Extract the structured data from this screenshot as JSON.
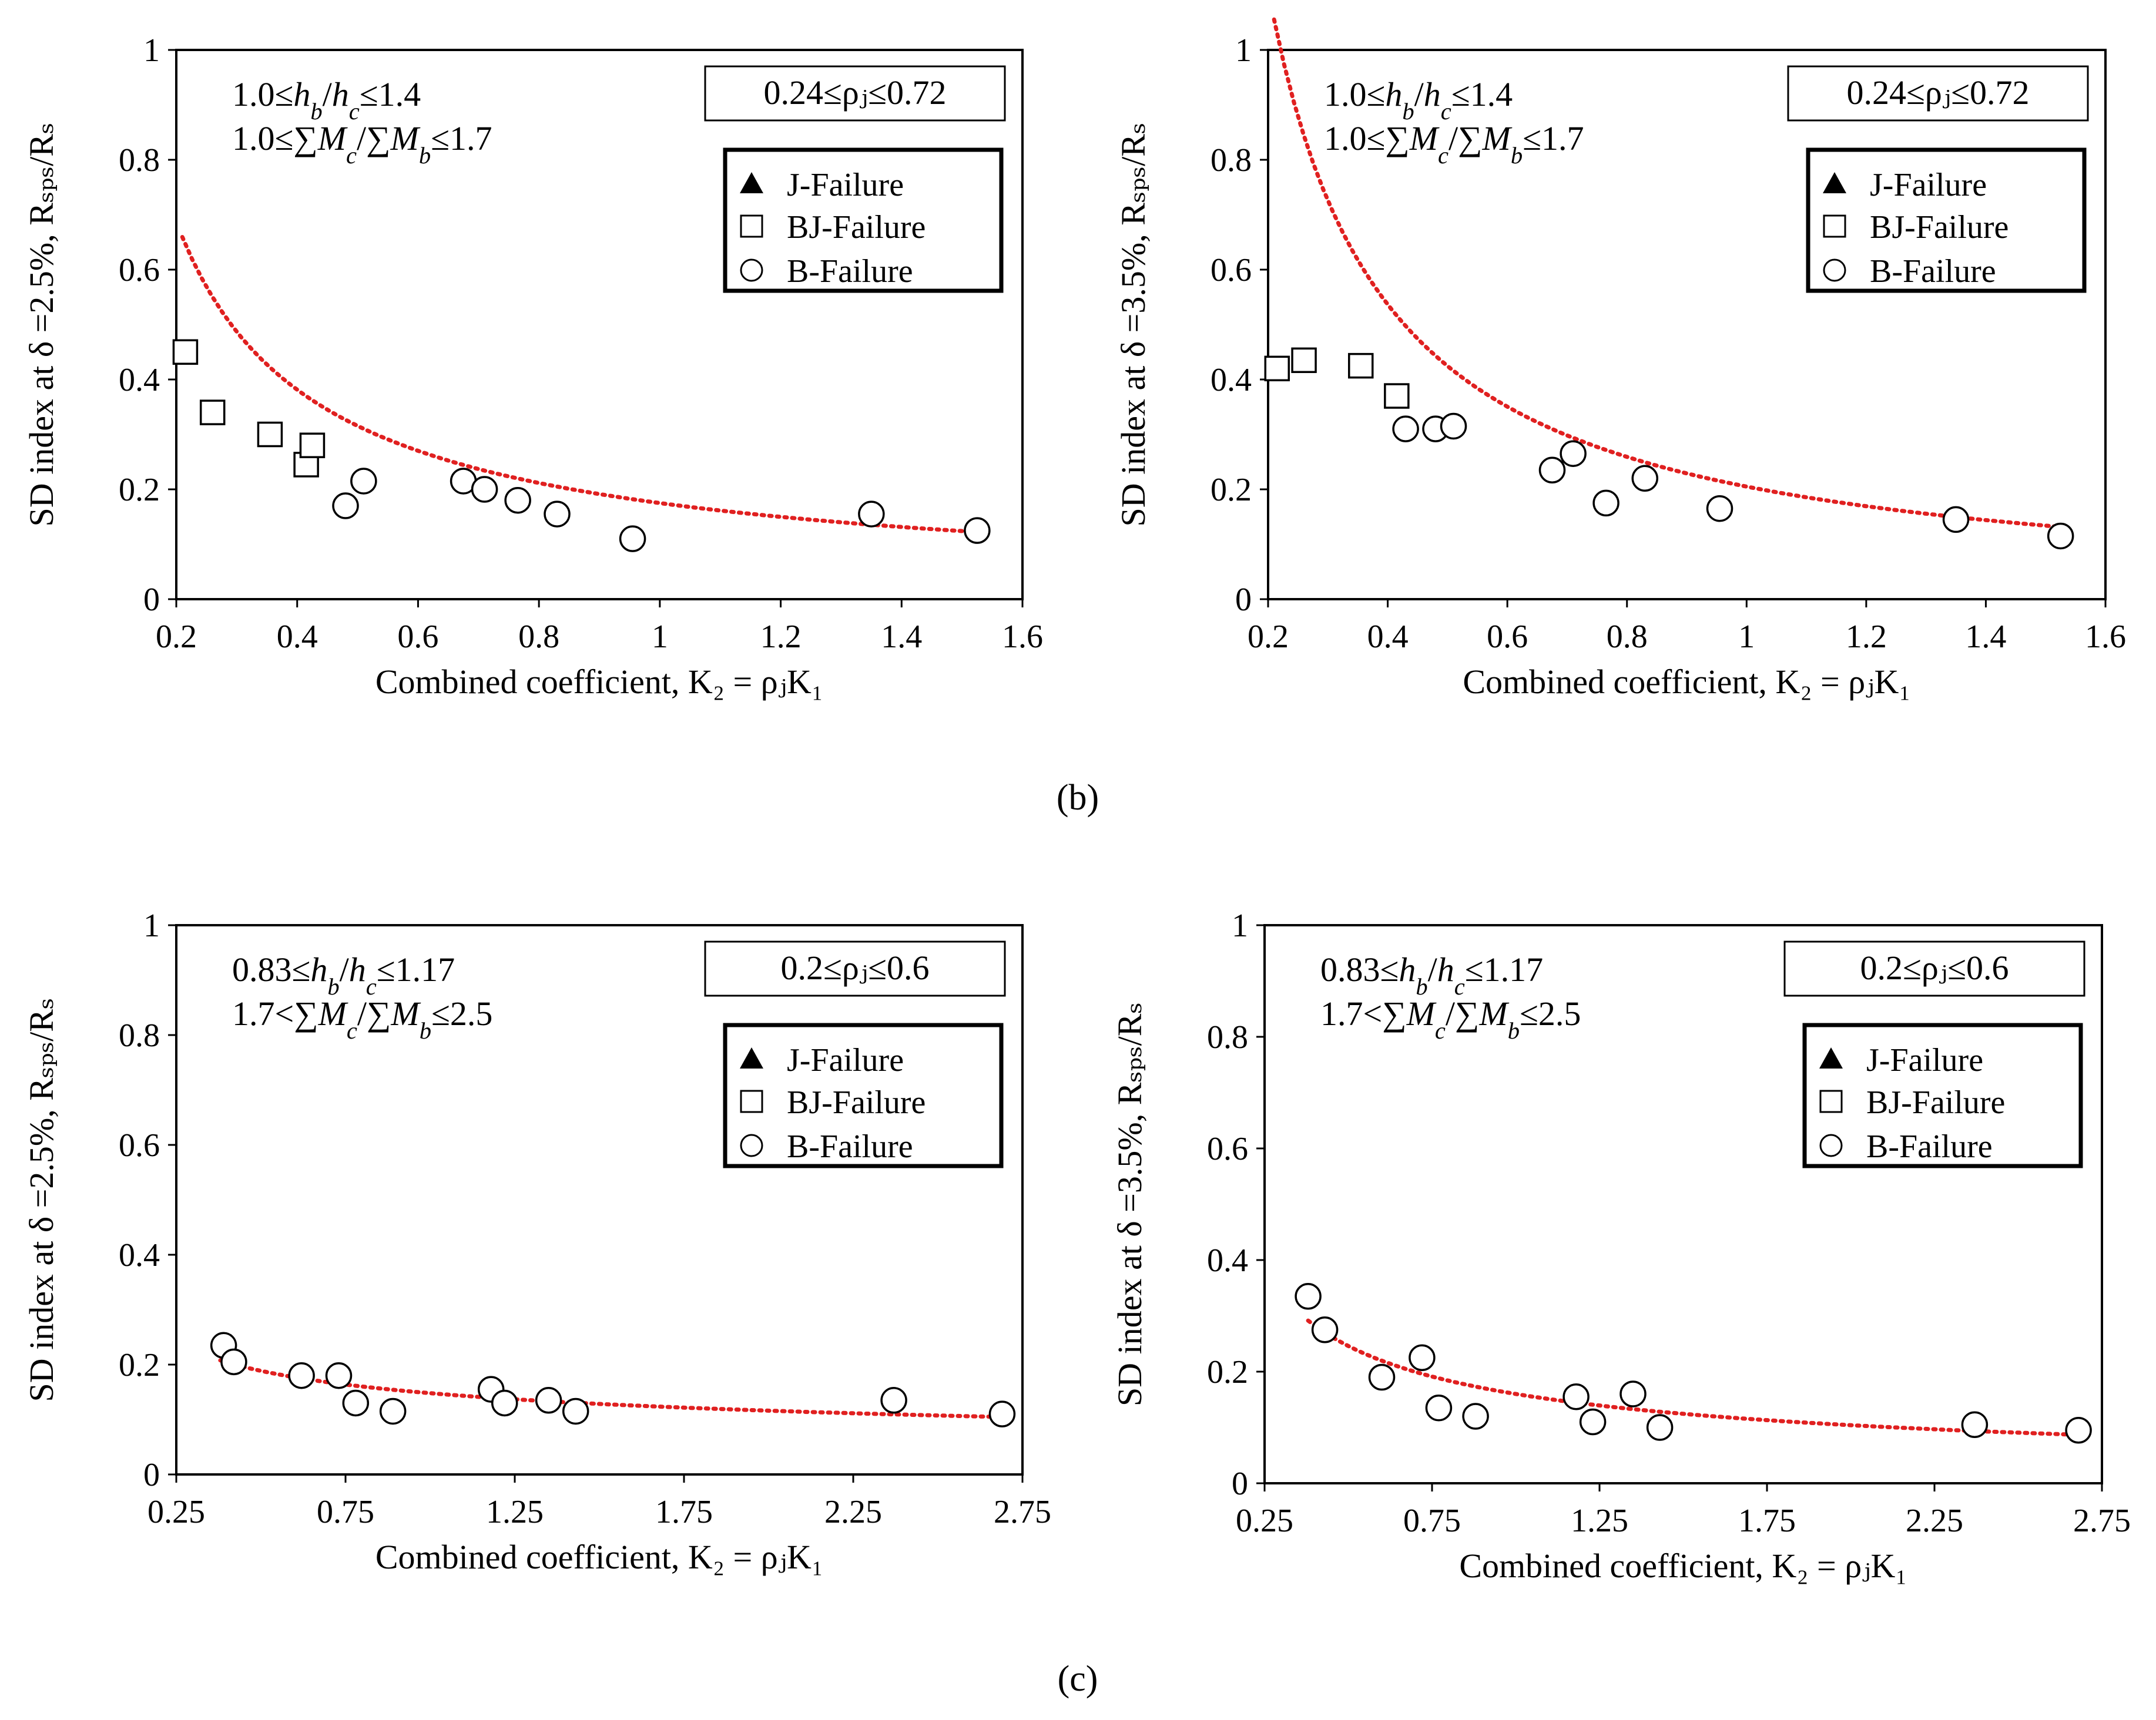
{
  "charts": [
    {
      "id": "b-left",
      "type": "scatter",
      "xlim": [
        0.2,
        1.6
      ],
      "ylim": [
        0,
        1
      ],
      "xticks": [
        0.2,
        0.4,
        0.6,
        0.8,
        1,
        1.2,
        1.4,
        1.6
      ],
      "xtick_labels": [
        "0.2",
        "0.4",
        "0.6",
        "0.8",
        "1",
        "1.2",
        "1.4",
        "1.6"
      ],
      "yticks": [
        0,
        0.2,
        0.4,
        0.6,
        0.8,
        1
      ],
      "ytick_labels": [
        "0",
        "0.2",
        "0.4",
        "0.6",
        "0.8",
        "1"
      ],
      "xlabel": "Combined coefficient, K₂ = ρⱼK₁",
      "ylabel": "SD index at δ =2.5%, Rₛₚₛ/Rₛ",
      "annotation_line1": "1.0≤h_b/h_c≤1.4",
      "annotation_line2": "1.0≤∑M_c/∑M_b≤1.7",
      "range_box": "0.24≤ρⱼ≤0.72",
      "legend": [
        "J-Failure",
        "BJ-Failure",
        "B-Failure"
      ],
      "bj_points": [
        [
          0.215,
          0.45
        ],
        [
          0.26,
          0.34
        ],
        [
          0.355,
          0.3
        ],
        [
          0.415,
          0.245
        ],
        [
          0.425,
          0.28
        ]
      ],
      "b_points": [
        [
          0.48,
          0.17
        ],
        [
          0.51,
          0.215
        ],
        [
          0.675,
          0.215
        ],
        [
          0.71,
          0.2
        ],
        [
          0.765,
          0.18
        ],
        [
          0.83,
          0.155
        ],
        [
          0.955,
          0.11
        ],
        [
          1.35,
          0.155
        ],
        [
          1.525,
          0.125
        ]
      ],
      "trend": {
        "a": 0.175,
        "b": -0.85,
        "x_from": 0.21,
        "x_to": 1.52
      }
    },
    {
      "id": "b-right",
      "type": "scatter",
      "xlim": [
        0.2,
        1.6
      ],
      "ylim": [
        0,
        1
      ],
      "xticks": [
        0.2,
        0.4,
        0.6,
        0.8,
        1,
        1.2,
        1.4,
        1.6
      ],
      "xtick_labels": [
        "0.2",
        "0.4",
        "0.6",
        "0.8",
        "1",
        "1.2",
        "1.4",
        "1.6"
      ],
      "yticks": [
        0,
        0.2,
        0.4,
        0.6,
        0.8,
        1
      ],
      "ytick_labels": [
        "0",
        "0.2",
        "0.4",
        "0.6",
        "0.8",
        "1"
      ],
      "xlabel": "Combined coefficient, K₂ = ρⱼK₁",
      "ylabel": "SD index at δ =3.5%, Rₛₚₛ/Rₛ",
      "annotation_line1": "1.0≤h_b/h_c≤1.4",
      "annotation_line2": "1.0≤∑M_c/∑M_b≤1.7",
      "range_box": "0.24≤ρⱼ≤0.72",
      "legend": [
        "J-Failure",
        "BJ-Failure",
        "B-Failure"
      ],
      "bj_points": [
        [
          0.215,
          0.42
        ],
        [
          0.26,
          0.435
        ],
        [
          0.355,
          0.425
        ],
        [
          0.415,
          0.37
        ]
      ],
      "b_points": [
        [
          0.43,
          0.31
        ],
        [
          0.48,
          0.31
        ],
        [
          0.51,
          0.315
        ],
        [
          0.675,
          0.235
        ],
        [
          0.71,
          0.265
        ],
        [
          0.765,
          0.175
        ],
        [
          0.83,
          0.22
        ],
        [
          0.955,
          0.165
        ],
        [
          1.35,
          0.145
        ],
        [
          1.525,
          0.115
        ]
      ],
      "trend": {
        "a": 0.205,
        "b": -1.05,
        "x_from": 0.21,
        "x_to": 1.52
      }
    },
    {
      "id": "c-left",
      "type": "scatter",
      "xlim": [
        0.25,
        2.75
      ],
      "ylim": [
        0,
        1
      ],
      "xticks": [
        0.25,
        0.75,
        1.25,
        1.75,
        2.25,
        2.75
      ],
      "xtick_labels": [
        "0.25",
        "0.75",
        "1.25",
        "1.75",
        "2.25",
        "2.75"
      ],
      "yticks": [
        0,
        0.2,
        0.4,
        0.6,
        0.8,
        1
      ],
      "ytick_labels": [
        "0",
        "0.2",
        "0.4",
        "0.6",
        "0.8",
        "1"
      ],
      "xlabel": "Combined coefficient, K₂ = ρⱼK₁",
      "ylabel": "SD index at δ =2.5%, Rₛₚₛ/Rₛ",
      "annotation_line1": "0.83≤h_b/h_c≤1.17",
      "annotation_line2": "1.7<∑M_c/∑M_b≤2.5",
      "range_box": "0.2≤ρⱼ≤0.6",
      "legend": [
        "J-Failure",
        "BJ-Failure",
        "B-Failure"
      ],
      "bj_points": [],
      "b_points": [
        [
          0.39,
          0.235
        ],
        [
          0.42,
          0.205
        ],
        [
          0.62,
          0.18
        ],
        [
          0.73,
          0.18
        ],
        [
          0.78,
          0.13
        ],
        [
          0.89,
          0.115
        ],
        [
          1.18,
          0.155
        ],
        [
          1.22,
          0.13
        ],
        [
          1.35,
          0.135
        ],
        [
          1.43,
          0.115
        ],
        [
          2.37,
          0.135
        ],
        [
          2.69,
          0.11
        ]
      ],
      "trend": {
        "a": 0.148,
        "b": -0.35,
        "x_from": 0.38,
        "x_to": 2.68
      }
    },
    {
      "id": "c-right",
      "type": "scatter",
      "xlim": [
        0.25,
        2.75
      ],
      "ylim": [
        0,
        1
      ],
      "xticks": [
        0.25,
        0.75,
        1.25,
        1.75,
        2.25,
        2.75
      ],
      "xtick_labels": [
        "0.25",
        "0.75",
        "1.25",
        "1.75",
        "2.25",
        "2.75"
      ],
      "yticks": [
        0,
        0.2,
        0.4,
        0.6,
        0.8,
        1
      ],
      "ytick_labels": [
        "0",
        "0.2",
        "0.4",
        "0.6",
        "0.8",
        "1"
      ],
      "xlabel": "Combined coefficient, K₂ = ρⱼK₁",
      "ylabel": "SD index at δ =3.5%, Rₛₚₛ/Rₛ",
      "annotation_line1": "0.83≤h_b/h_c≤1.17",
      "annotation_line2": "1.7<∑M_c/∑M_b≤2.5",
      "range_box": "0.2≤ρⱼ≤0.6",
      "legend": [
        "J-Failure",
        "BJ-Failure",
        "B-Failure"
      ],
      "bj_points": [],
      "b_points": [
        [
          0.38,
          0.335
        ],
        [
          0.43,
          0.275
        ],
        [
          0.6,
          0.19
        ],
        [
          0.72,
          0.225
        ],
        [
          0.77,
          0.135
        ],
        [
          0.88,
          0.12
        ],
        [
          1.18,
          0.155
        ],
        [
          1.23,
          0.11
        ],
        [
          1.35,
          0.16
        ],
        [
          1.43,
          0.1
        ],
        [
          2.37,
          0.105
        ],
        [
          2.68,
          0.095
        ]
      ],
      "trend": {
        "a": 0.16,
        "b": -0.62,
        "x_from": 0.38,
        "x_to": 2.68
      }
    }
  ],
  "panel_labels": {
    "b": "(b)",
    "c": "(c)"
  },
  "colors": {
    "trend": "#e02020",
    "marker": "#000000"
  }
}
